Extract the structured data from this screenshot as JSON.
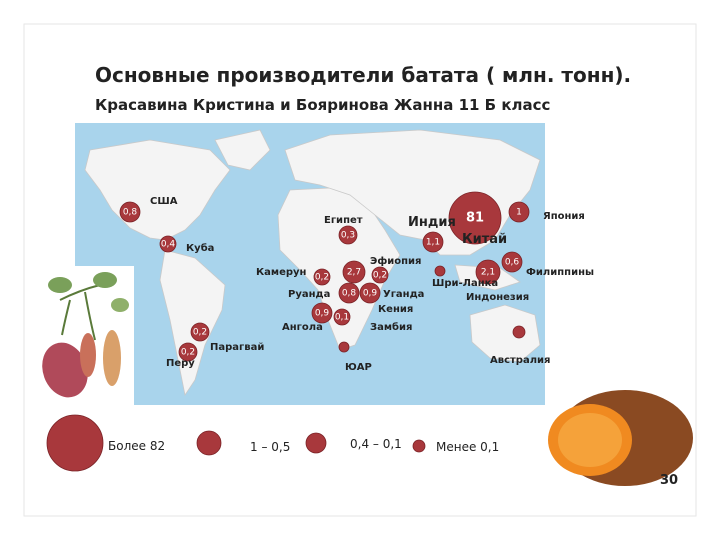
{
  "title": "Основные производители батата ( млн. тонн).",
  "subtitle": "Красавина Кристина и Бояринова Жанна 11 Б класс",
  "map_labels": [
    "США",
    "Куба",
    "Египет",
    "Индия",
    "Китай",
    "Япония",
    "Эфиопия",
    "Камерун",
    "Руанда",
    "Уганда",
    "Кения",
    "Ангола",
    "Замбия",
    "Шри-Ланка",
    "Индонезия",
    "Филиппины",
    "ЮАР",
    "Австралия",
    "Парагвай",
    "Перу"
  ],
  "markers": [
    "0,8",
    "0,4",
    "0,3",
    "1,1",
    "81",
    "1",
    "0,2",
    "0,2",
    "2,7",
    "0,8",
    "0,9",
    "0,9",
    "0,1",
    "2,1",
    "0,6",
    "0,2",
    "0,2"
  ],
  "legend": [
    "Более 82",
    "1 – 0,5",
    "0,4 – 0,1",
    "Менее 0,1"
  ],
  "page_number": "30"
}
